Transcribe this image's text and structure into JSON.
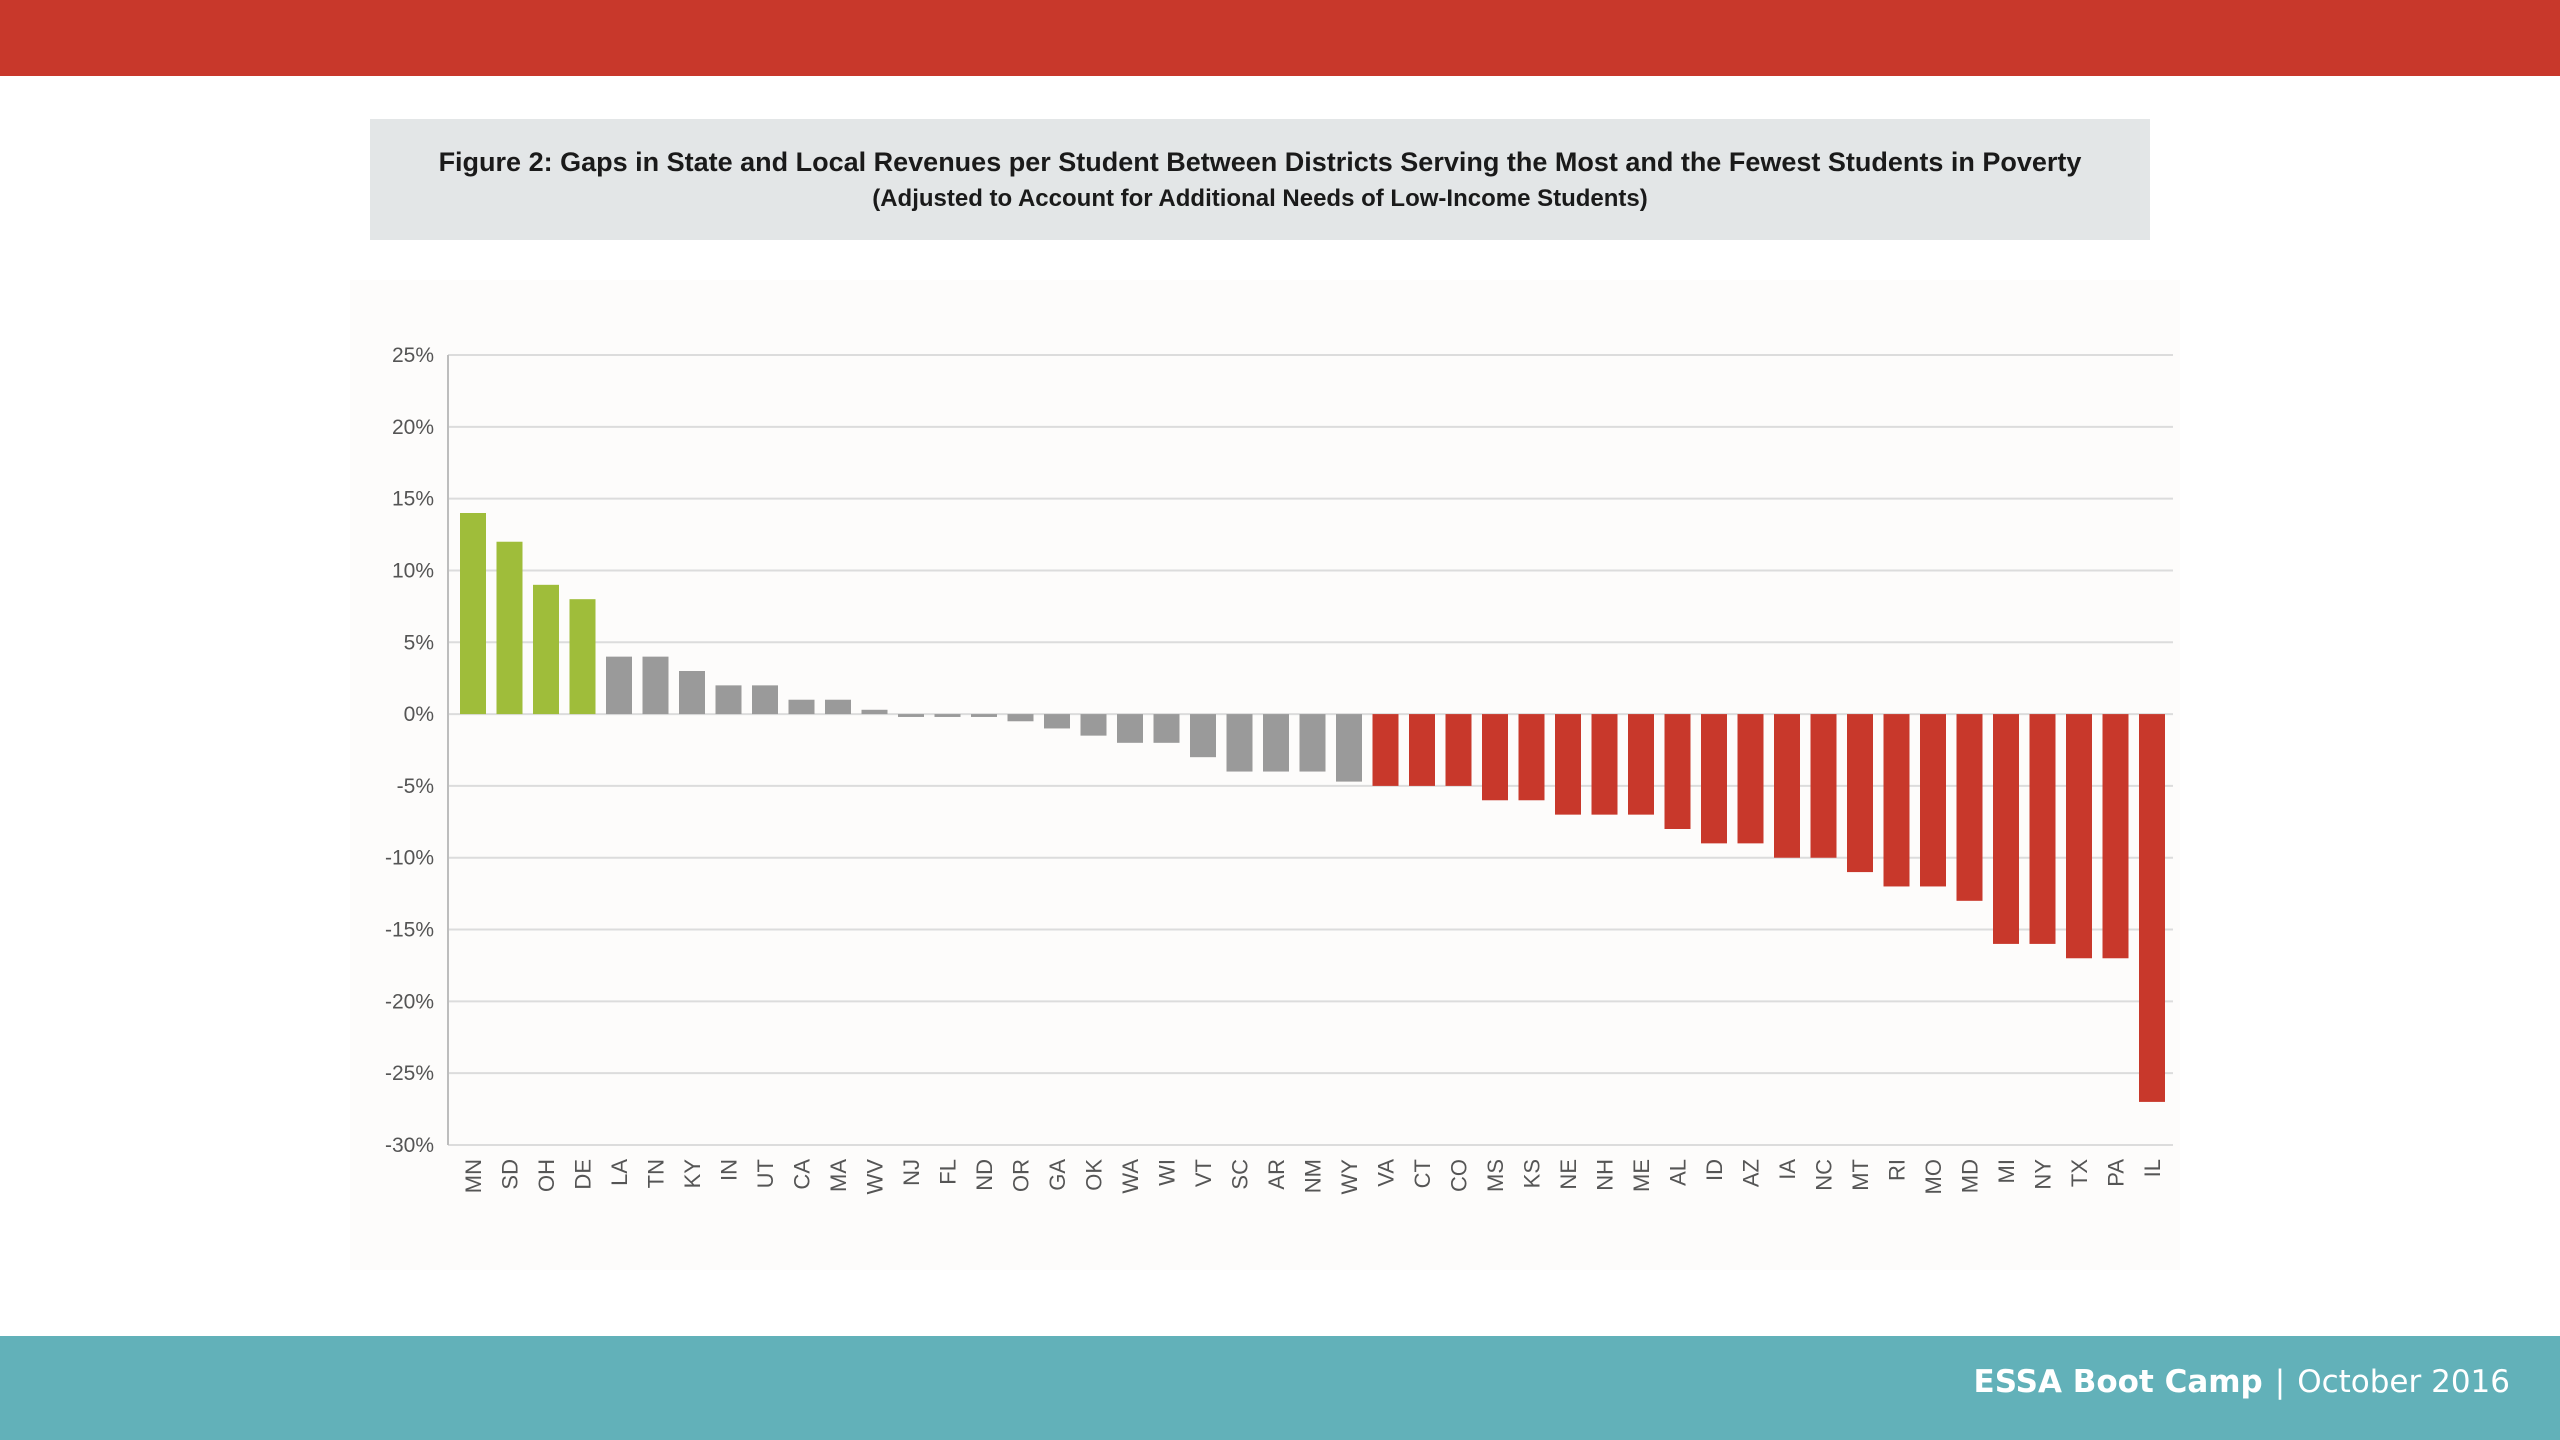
{
  "slide": {
    "footer_event": "ESSA Boot Camp",
    "footer_separator": "|",
    "footer_date": "October 2016"
  },
  "colors": {
    "top_bar": "#c8382b",
    "bottom_bar": "#62b1b9",
    "positive_highlight": "#9fbd3a",
    "neutral": "#9a9a9a",
    "negative_highlight": "#c8382b"
  },
  "chart_data": {
    "type": "bar",
    "title": "Figure 2: Gaps in State and Local Revenues per Student Between Districts Serving the Most and the Fewest Students in Poverty",
    "subtitle": "(Adjusted to Account for Additional Needs of Low-Income Students)",
    "xlabel": "",
    "ylabel": "",
    "ylim": [
      -30,
      25
    ],
    "yticks": [
      25,
      20,
      15,
      10,
      5,
      0,
      -5,
      -10,
      -15,
      -20,
      -25,
      -30
    ],
    "ytick_labels": [
      "25%",
      "20%",
      "15%",
      "10%",
      "5%",
      "0%",
      "-5%",
      "-10%",
      "-15%",
      "-20%",
      "-25%",
      "-30%"
    ],
    "grid": true,
    "categories": [
      "MN",
      "SD",
      "OH",
      "DE",
      "LA",
      "TN",
      "KY",
      "IN",
      "UT",
      "CA",
      "MA",
      "WV",
      "NJ",
      "FL",
      "ND",
      "OR",
      "GA",
      "OK",
      "WA",
      "WI",
      "VT",
      "SC",
      "AR",
      "NM",
      "WY",
      "VA",
      "CT",
      "CO",
      "MS",
      "KS",
      "NE",
      "NH",
      "ME",
      "AL",
      "ID",
      "AZ",
      "IA",
      "NC",
      "MT",
      "RI",
      "MO",
      "MD",
      "MI",
      "NY",
      "TX",
      "PA",
      "IL"
    ],
    "values": [
      14,
      12,
      9,
      8,
      4,
      4,
      3,
      2,
      2,
      1,
      1,
      0.3,
      -0.2,
      -0.2,
      -0.2,
      -0.5,
      -1,
      -1.5,
      -2,
      -2,
      -3,
      -4,
      -4,
      -4,
      -4.7,
      -5,
      -5,
      -5,
      -6,
      -6,
      -7,
      -7,
      -7,
      -8,
      -9,
      -9,
      -10,
      -10,
      -11,
      -12,
      -12,
      -13,
      -16,
      -16,
      -17,
      -17,
      -27
    ],
    "bar_colors": [
      "green",
      "green",
      "green",
      "green",
      "gray",
      "gray",
      "gray",
      "gray",
      "gray",
      "gray",
      "gray",
      "gray",
      "gray",
      "gray",
      "gray",
      "gray",
      "gray",
      "gray",
      "gray",
      "gray",
      "gray",
      "gray",
      "gray",
      "gray",
      "gray",
      "red",
      "red",
      "red",
      "red",
      "red",
      "red",
      "red",
      "red",
      "red",
      "red",
      "red",
      "red",
      "red",
      "red",
      "red",
      "red",
      "red",
      "red",
      "red",
      "red",
      "red",
      "red"
    ]
  }
}
